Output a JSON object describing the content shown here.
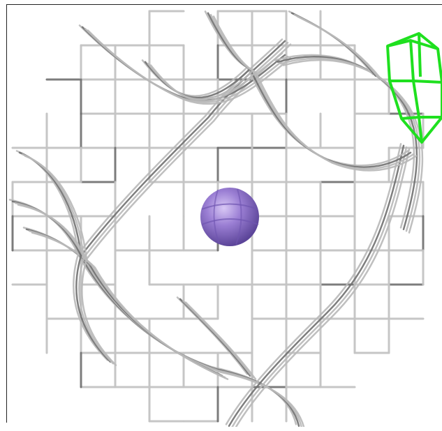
{
  "viewer": {
    "background": "#ffffff",
    "mesh_color": "#c8c8c8",
    "mesh_shadow": "#6e6e6e",
    "ion_color": "#9b7fd4",
    "ion_highlight": "#c9b6ee",
    "ion_shadow": "#6f55b0",
    "green_mesh_color": "#1fe01f"
  }
}
